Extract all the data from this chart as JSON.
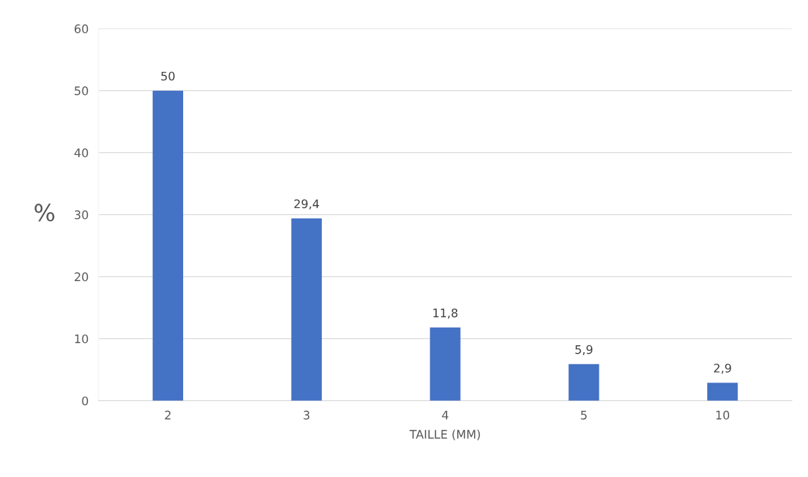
{
  "chart_data": {
    "type": "bar",
    "xlabel": "TAILLE (MM)",
    "ylabel": "%",
    "categories": [
      "2",
      "3",
      "4",
      "5",
      "10"
    ],
    "values": [
      50,
      29.4,
      11.8,
      5.9,
      2.9
    ],
    "value_labels": [
      "50",
      "29,4",
      "11,8",
      "5,9",
      "2,9"
    ],
    "color": "#4472c4",
    "ylim": [
      0,
      60
    ],
    "yticks": [
      0,
      10,
      20,
      30,
      40,
      50,
      60
    ],
    "grid": "y",
    "legend": false
  }
}
